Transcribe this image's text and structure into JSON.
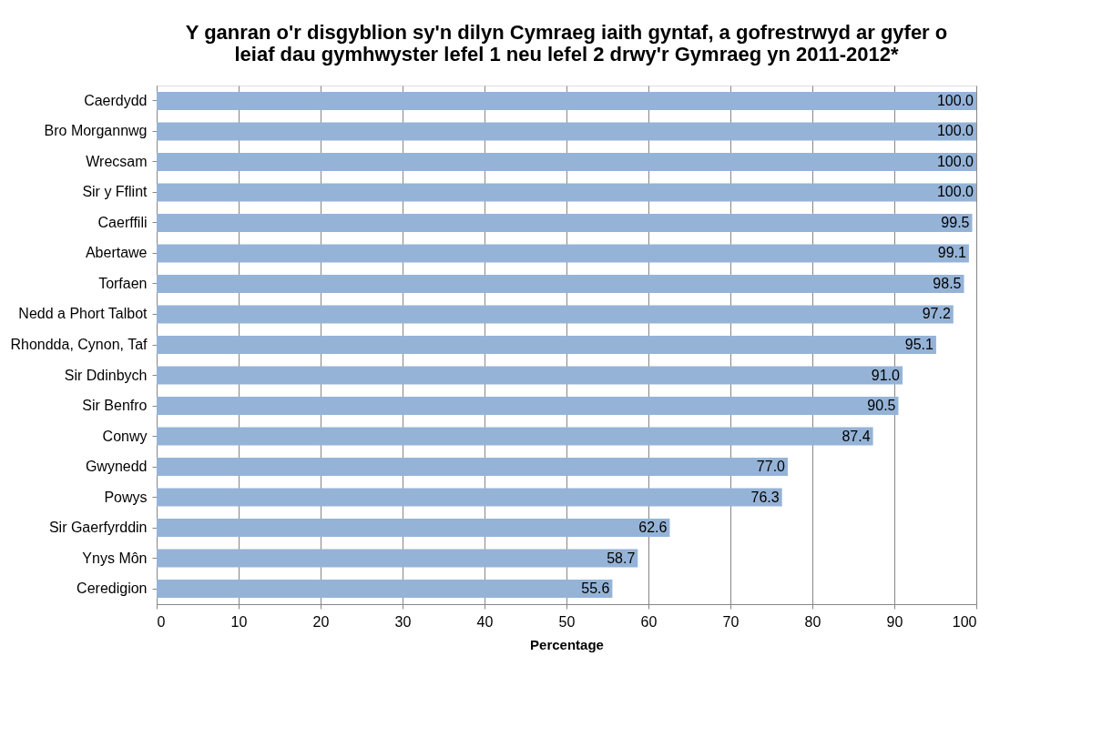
{
  "chart_data": {
    "type": "bar",
    "orientation": "horizontal",
    "title": "Y ganran o'r disgyblion sy'n dilyn Cymraeg iaith gyntaf, a gofrestrwyd ar gyfer o\nleiaf dau gymhwyster lefel 1 neu lefel 2 drwy'r Gymraeg yn 2011-2012*",
    "xlabel": "Percentage",
    "categories": [
      "Caerdydd",
      "Bro Morgannwg",
      "Wrecsam",
      "Sir y Fflint",
      "Caerffili",
      "Abertawe",
      "Torfaen",
      "Nedd a Phort Talbot",
      "Rhondda, Cynon, Taf",
      "Sir Ddinbych",
      "Sir Benfro",
      "Conwy",
      "Gwynedd",
      "Powys",
      "Sir Gaerfyrddin",
      "Ynys Môn",
      "Ceredigion"
    ],
    "values": [
      100.0,
      100.0,
      100.0,
      100.0,
      99.5,
      99.1,
      98.5,
      97.2,
      95.1,
      91.0,
      90.5,
      87.4,
      77.0,
      76.3,
      62.6,
      58.7,
      55.6
    ],
    "value_labels": [
      "100.0",
      "100.0",
      "100.0",
      "100.0",
      "99.5",
      "99.1",
      "98.5",
      "97.2",
      "95.1",
      "91.0",
      "90.5",
      "87.4",
      "77.0",
      "76.3",
      "62.6",
      "58.7",
      "55.6"
    ],
    "color": "#95b3d7",
    "xlim": [
      0,
      100
    ],
    "xticks": [
      0,
      10,
      20,
      30,
      40,
      50,
      60,
      70,
      80,
      90,
      100
    ],
    "grid": "x"
  }
}
